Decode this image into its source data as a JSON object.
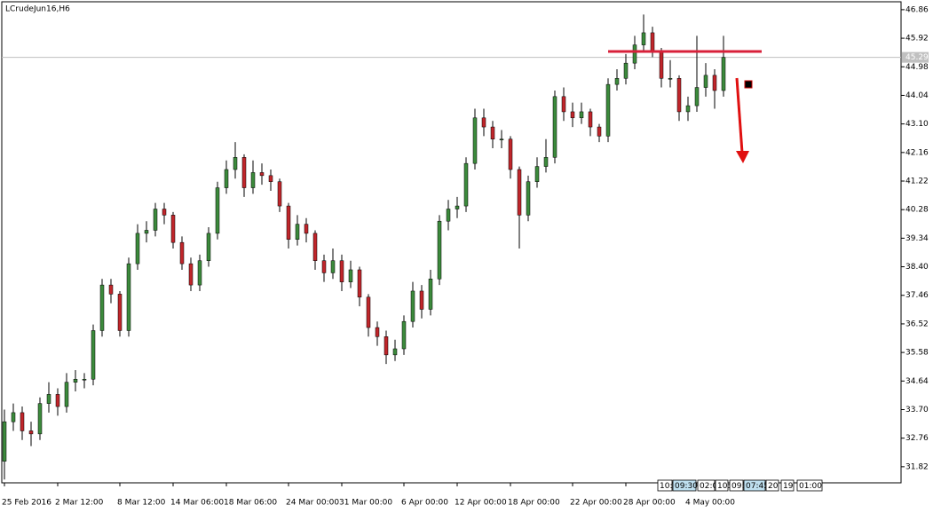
{
  "chart_data": {
    "type": "candlestick",
    "title": "LCrudeJun16,H6",
    "open": [
      32.0,
      33.3,
      33.6,
      33.0,
      32.9,
      33.9,
      34.2,
      33.8,
      34.6,
      34.7,
      34.7,
      36.3,
      37.8,
      37.5,
      36.3,
      38.5,
      39.5,
      39.6,
      40.3,
      40.1,
      39.2,
      38.5,
      37.8,
      38.6,
      39.5,
      41.0,
      41.6,
      42.0,
      41.0,
      41.5,
      41.4,
      41.2,
      40.4,
      39.3,
      39.8,
      39.5,
      38.6,
      38.2,
      38.6,
      37.9,
      38.3,
      37.4,
      36.4,
      36.1,
      35.5,
      35.7,
      36.6,
      37.6,
      37.0,
      38.0,
      39.9,
      40.3,
      40.4,
      41.8,
      43.3,
      43.0,
      42.6,
      42.6,
      41.6,
      40.1,
      41.2,
      41.7,
      42.0,
      44.0,
      43.5,
      43.3,
      43.5,
      43.0,
      42.7,
      44.4,
      44.6,
      45.1,
      45.7,
      46.1,
      45.5,
      44.6,
      44.6,
      43.5,
      43.7,
      44.3,
      44.7,
      44.2
    ],
    "high": [
      33.7,
      33.9,
      33.8,
      33.3,
      34.1,
      34.6,
      34.4,
      34.9,
      35.0,
      34.9,
      36.5,
      38.0,
      38.0,
      37.6,
      38.7,
      39.8,
      39.9,
      40.5,
      40.5,
      40.2,
      39.4,
      38.7,
      38.8,
      39.7,
      41.2,
      41.9,
      42.5,
      42.1,
      41.9,
      41.8,
      41.6,
      41.3,
      40.5,
      40.1,
      40.0,
      39.6,
      38.8,
      39.0,
      38.8,
      38.6,
      38.4,
      37.5,
      36.6,
      36.3,
      36.0,
      36.8,
      37.9,
      37.8,
      38.3,
      40.1,
      40.6,
      40.7,
      42.0,
      43.6,
      43.6,
      43.2,
      42.9,
      42.7,
      41.7,
      41.4,
      42.0,
      42.6,
      44.2,
      44.3,
      43.8,
      43.8,
      43.6,
      43.1,
      44.6,
      44.9,
      45.4,
      46.0,
      46.7,
      46.3,
      45.6,
      45.2,
      44.7,
      44.0,
      46.0,
      45.1,
      44.9,
      46.0
    ],
    "low": [
      31.4,
      33.0,
      32.7,
      32.5,
      32.7,
      33.6,
      33.5,
      33.6,
      34.3,
      34.4,
      34.5,
      36.1,
      37.2,
      36.1,
      36.1,
      38.3,
      39.2,
      39.4,
      39.8,
      39.0,
      38.3,
      37.6,
      37.6,
      38.4,
      39.3,
      40.8,
      41.3,
      40.7,
      40.8,
      41.1,
      40.9,
      40.2,
      39.0,
      39.1,
      39.2,
      38.3,
      37.9,
      38.0,
      37.6,
      37.7,
      37.1,
      36.1,
      35.8,
      35.2,
      35.3,
      35.5,
      36.4,
      36.7,
      36.8,
      37.8,
      39.6,
      40.0,
      40.2,
      41.6,
      42.7,
      42.3,
      42.3,
      41.3,
      39.0,
      39.9,
      41.0,
      41.5,
      41.8,
      43.2,
      43.0,
      43.1,
      42.7,
      42.5,
      42.5,
      44.2,
      44.4,
      44.9,
      45.5,
      45.3,
      44.3,
      44.3,
      43.2,
      43.2,
      43.5,
      44.0,
      43.6,
      44.0
    ],
    "close": [
      33.3,
      33.6,
      33.0,
      32.9,
      33.9,
      34.2,
      33.8,
      34.6,
      34.7,
      34.7,
      36.3,
      37.8,
      37.5,
      36.3,
      38.5,
      39.5,
      39.6,
      40.3,
      40.1,
      39.2,
      38.5,
      37.8,
      38.6,
      39.5,
      41.0,
      41.6,
      42.0,
      41.0,
      41.5,
      41.4,
      41.2,
      40.4,
      39.3,
      39.8,
      39.5,
      38.6,
      38.2,
      38.6,
      37.9,
      38.3,
      37.4,
      36.4,
      36.1,
      35.5,
      35.7,
      36.6,
      37.6,
      37.0,
      38.0,
      39.9,
      40.3,
      40.4,
      41.8,
      43.3,
      43.0,
      42.6,
      42.6,
      41.6,
      40.1,
      41.2,
      41.7,
      42.0,
      44.0,
      43.5,
      43.3,
      43.5,
      43.0,
      42.7,
      44.4,
      44.6,
      45.1,
      45.7,
      46.1,
      45.5,
      44.6,
      44.6,
      43.5,
      43.7,
      44.3,
      44.7,
      44.2,
      45.29
    ],
    "up_color": "#3c8a3c",
    "down_color": "#c0262b",
    "wick_color": "#000000",
    "current_price": 45.29,
    "ylim": [
      31.29,
      47.12
    ],
    "yticks": [
      31.82,
      32.76,
      {
        "value": 33.7,
        "label": "33.70"
      },
      34.64,
      35.58,
      36.52,
      37.46,
      {
        "value": 38.4,
        "label": "38.40"
      },
      39.34,
      40.28,
      41.22,
      42.16,
      {
        "value": 43.1,
        "label": "43.10"
      },
      44.04,
      44.98,
      45.92,
      46.86
    ],
    "xticks": [
      {
        "value": 0,
        "label": "25 Feb 2016"
      },
      {
        "value": 6,
        "label": "2 Mar 12:00"
      },
      {
        "value": 13,
        "label": "8 Mar 12:00"
      },
      {
        "value": 19,
        "label": "14 Mar 06:00"
      },
      {
        "value": 25,
        "label": "18 Mar 06:00"
      },
      {
        "value": 32,
        "label": "24 Mar 00:00"
      },
      {
        "value": 38,
        "label": "31 Mar 00:00"
      },
      {
        "value": 45,
        "label": "6 Apr 00:00"
      },
      {
        "value": 51,
        "label": "12 Apr 00:00"
      },
      {
        "value": 57,
        "label": "18 Apr 00:00"
      },
      {
        "value": 64,
        "label": "22 Apr 00:00"
      },
      {
        "value": 70,
        "label": "28 Apr 00:00"
      },
      {
        "value": 77,
        "label": "4 May 00:00"
      }
    ],
    "timeline_labels": [
      "10:",
      "09:30",
      "02:0",
      "10:",
      "09:",
      "07:45",
      "20",
      "19",
      "01:00"
    ]
  }
}
